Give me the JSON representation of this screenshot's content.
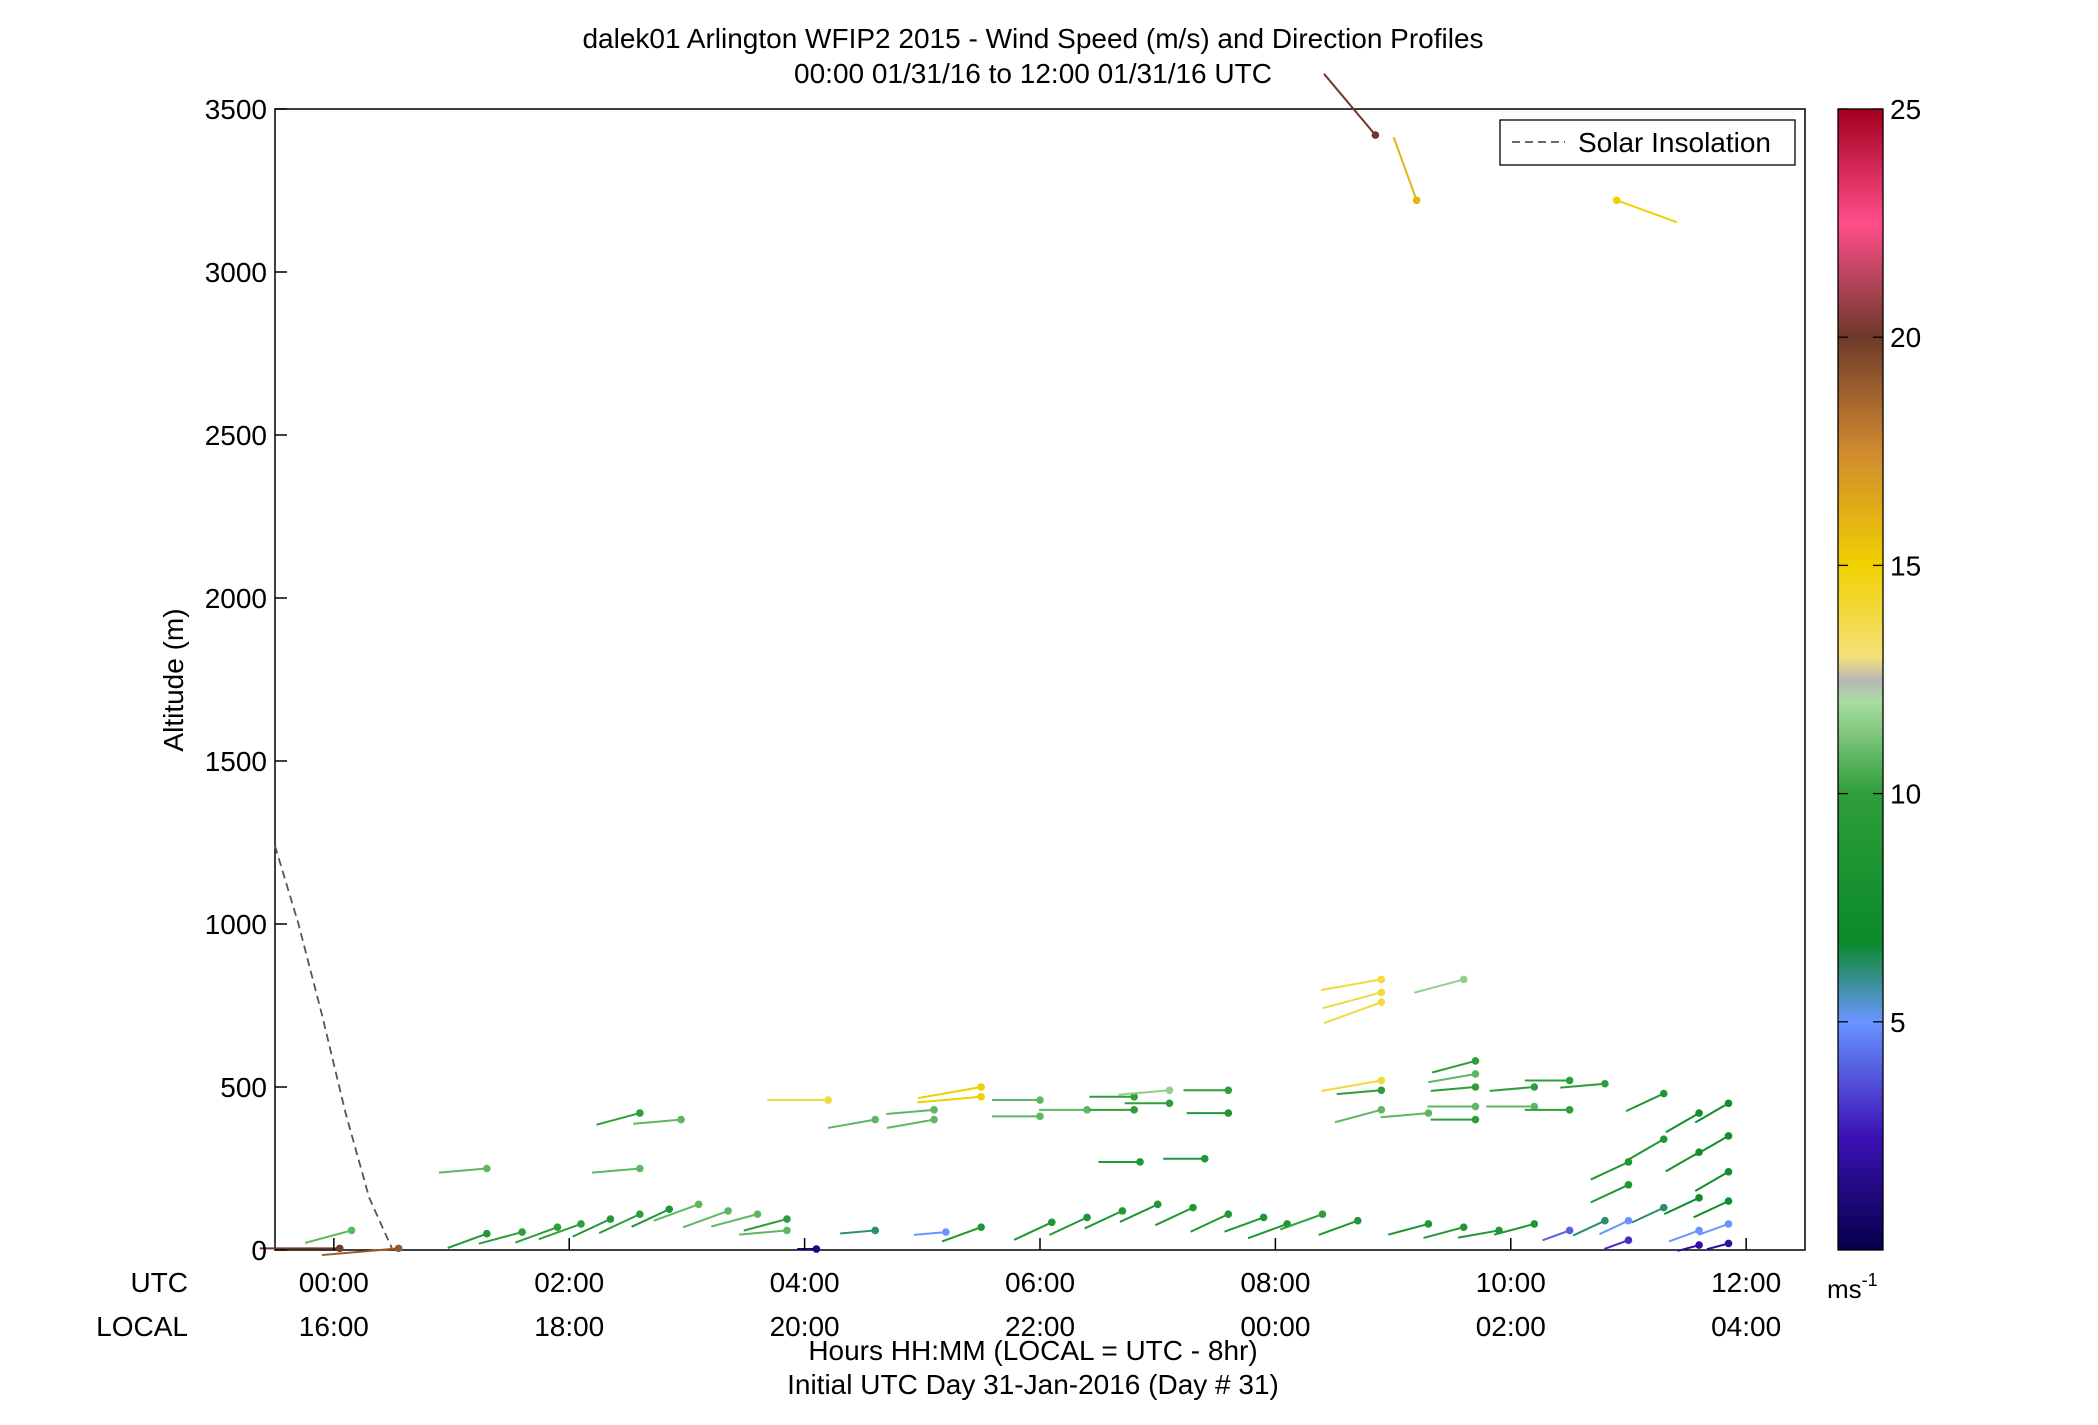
{
  "chart_data": {
    "type": "scatter",
    "title": "dalek01 Arlington WFIP2 2015 - Wind Speed (m/s) and Direction Profiles",
    "subtitle": "00:00 01/31/16 to 12:00 01/31/16  UTC",
    "ylabel": "Altitude (m)",
    "xlabel": "Hours HH:MM  (LOCAL = UTC - 8hr)",
    "xlabel2": "Initial UTC Day 31-Jan-2016 (Day # 31)",
    "xrow_labels": {
      "utc": "UTC",
      "local": "LOCAL"
    },
    "xlim_hours": [
      -0.5,
      12.5
    ],
    "ylim": [
      0,
      3500
    ],
    "y_ticks": [
      0,
      500,
      1000,
      1500,
      2000,
      2500,
      3000,
      3500
    ],
    "x_ticks_hours": [
      0,
      2,
      4,
      6,
      8,
      10,
      12
    ],
    "x_tick_labels_utc": [
      "00:00",
      "02:00",
      "04:00",
      "06:00",
      "08:00",
      "10:00",
      "12:00"
    ],
    "x_tick_labels_local": [
      "16:00",
      "18:00",
      "20:00",
      "22:00",
      "00:00",
      "02:00",
      "04:00"
    ],
    "legend": {
      "label": "Solar Insolation",
      "position": "top-right"
    },
    "colorbar": {
      "range": [
        0,
        25
      ],
      "ticks": [
        5,
        10,
        15,
        20,
        25
      ],
      "unit_label": "ms",
      "unit_exponent": "-1"
    },
    "solar_insolation": {
      "x": [
        -0.5,
        -0.3,
        -0.1,
        0.1,
        0.3,
        0.5
      ],
      "y": [
        1240,
        1000,
        720,
        420,
        160,
        0
      ]
    },
    "wind_barbs": [
      {
        "t": 0.05,
        "z": 5,
        "s": 20,
        "d": 270
      },
      {
        "t": 0.15,
        "z": 60,
        "s": 10,
        "d": 255
      },
      {
        "t": 0.55,
        "z": 5,
        "s": 19,
        "d": 265
      },
      {
        "t": 1.3,
        "z": 250,
        "s": 10,
        "d": 265
      },
      {
        "t": 1.3,
        "z": 50,
        "s": 8,
        "d": 250
      },
      {
        "t": 1.6,
        "z": 55,
        "s": 9,
        "d": 255
      },
      {
        "t": 1.9,
        "z": 70,
        "s": 9,
        "d": 250
      },
      {
        "t": 2.1,
        "z": 80,
        "s": 9,
        "d": 250
      },
      {
        "t": 2.35,
        "z": 95,
        "s": 8,
        "d": 245
      },
      {
        "t": 2.6,
        "z": 110,
        "s": 9,
        "d": 245
      },
      {
        "t": 2.85,
        "z": 125,
        "s": 8,
        "d": 245
      },
      {
        "t": 2.6,
        "z": 420,
        "s": 9,
        "d": 255
      },
      {
        "t": 2.95,
        "z": 400,
        "s": 10,
        "d": 265
      },
      {
        "t": 2.6,
        "z": 250,
        "s": 10,
        "d": 265
      },
      {
        "t": 3.1,
        "z": 140,
        "s": 10,
        "d": 250
      },
      {
        "t": 3.35,
        "z": 120,
        "s": 10,
        "d": 250
      },
      {
        "t": 3.6,
        "z": 110,
        "s": 10,
        "d": 255
      },
      {
        "t": 3.85,
        "z": 95,
        "s": 9,
        "d": 255
      },
      {
        "t": 3.85,
        "z": 60,
        "s": 10,
        "d": 265
      },
      {
        "t": 4.1,
        "z": 3,
        "s": 1,
        "d": 270
      },
      {
        "t": 4.2,
        "z": 460,
        "s": 14,
        "d": 270
      },
      {
        "t": 4.6,
        "z": 400,
        "s": 10,
        "d": 260
      },
      {
        "t": 4.6,
        "z": 60,
        "s": 6,
        "d": 265
      },
      {
        "t": 5.1,
        "z": 430,
        "s": 10,
        "d": 265
      },
      {
        "t": 5.1,
        "z": 400,
        "s": 10,
        "d": 260
      },
      {
        "t": 5.2,
        "z": 55,
        "s": 5,
        "d": 265
      },
      {
        "t": 5.5,
        "z": 70,
        "s": 8,
        "d": 250
      },
      {
        "t": 5.5,
        "z": 500,
        "s": 15,
        "d": 260
      },
      {
        "t": 5.5,
        "z": 470,
        "s": 15,
        "d": 265
      },
      {
        "t": 6.0,
        "z": 460,
        "s": 10,
        "d": 270
      },
      {
        "t": 6.0,
        "z": 410,
        "s": 10,
        "d": 270
      },
      {
        "t": 6.1,
        "z": 85,
        "s": 8,
        "d": 245
      },
      {
        "t": 6.4,
        "z": 100,
        "s": 8,
        "d": 245
      },
      {
        "t": 6.4,
        "z": 430,
        "s": 10,
        "d": 270
      },
      {
        "t": 6.7,
        "z": 120,
        "s": 8,
        "d": 245
      },
      {
        "t": 6.8,
        "z": 470,
        "s": 9,
        "d": 270
      },
      {
        "t": 6.8,
        "z": 430,
        "s": 9,
        "d": 270
      },
      {
        "t": 6.85,
        "z": 270,
        "s": 8,
        "d": 270
      },
      {
        "t": 7.0,
        "z": 140,
        "s": 8,
        "d": 245
      },
      {
        "t": 7.1,
        "z": 490,
        "s": 11,
        "d": 265
      },
      {
        "t": 7.1,
        "z": 450,
        "s": 9,
        "d": 270
      },
      {
        "t": 7.3,
        "z": 130,
        "s": 8,
        "d": 245
      },
      {
        "t": 7.4,
        "z": 280,
        "s": 8,
        "d": 270
      },
      {
        "t": 7.6,
        "z": 110,
        "s": 8,
        "d": 245
      },
      {
        "t": 7.6,
        "z": 490,
        "s": 9,
        "d": 270
      },
      {
        "t": 7.6,
        "z": 420,
        "s": 8,
        "d": 270
      },
      {
        "t": 7.9,
        "z": 100,
        "s": 8,
        "d": 250
      },
      {
        "t": 8.1,
        "z": 80,
        "s": 8,
        "d": 250
      },
      {
        "t": 8.4,
        "z": 110,
        "s": 9,
        "d": 250
      },
      {
        "t": 8.7,
        "z": 90,
        "s": 8,
        "d": 250
      },
      {
        "t": 8.9,
        "z": 830,
        "s": 14,
        "d": 260
      },
      {
        "t": 8.9,
        "z": 790,
        "s": 14,
        "d": 255
      },
      {
        "t": 8.9,
        "z": 760,
        "s": 14,
        "d": 250
      },
      {
        "t": 8.9,
        "z": 520,
        "s": 14,
        "d": 260
      },
      {
        "t": 8.9,
        "z": 490,
        "s": 9,
        "d": 265
      },
      {
        "t": 8.9,
        "z": 430,
        "s": 10,
        "d": 255
      },
      {
        "t": 8.85,
        "z": 3420,
        "s": 20,
        "d": 320
      },
      {
        "t": 9.2,
        "z": 3220,
        "s": 16,
        "d": 340
      },
      {
        "t": 9.3,
        "z": 420,
        "s": 10,
        "d": 265
      },
      {
        "t": 9.6,
        "z": 830,
        "s": 11,
        "d": 255
      },
      {
        "t": 9.7,
        "z": 580,
        "s": 9,
        "d": 255
      },
      {
        "t": 9.7,
        "z": 540,
        "s": 10,
        "d": 260
      },
      {
        "t": 9.7,
        "z": 500,
        "s": 9,
        "d": 265
      },
      {
        "t": 9.7,
        "z": 440,
        "s": 10,
        "d": 270
      },
      {
        "t": 9.7,
        "z": 400,
        "s": 9,
        "d": 270
      },
      {
        "t": 9.3,
        "z": 80,
        "s": 8,
        "d": 255
      },
      {
        "t": 9.6,
        "z": 70,
        "s": 8,
        "d": 255
      },
      {
        "t": 9.9,
        "z": 60,
        "s": 8,
        "d": 260
      },
      {
        "t": 10.2,
        "z": 500,
        "s": 9,
        "d": 265
      },
      {
        "t": 10.2,
        "z": 440,
        "s": 10,
        "d": 270
      },
      {
        "t": 10.2,
        "z": 80,
        "s": 8,
        "d": 255
      },
      {
        "t": 10.5,
        "z": 520,
        "s": 9,
        "d": 270
      },
      {
        "t": 10.5,
        "z": 430,
        "s": 9,
        "d": 270
      },
      {
        "t": 10.5,
        "z": 60,
        "s": 4,
        "d": 250
      },
      {
        "t": 10.8,
        "z": 510,
        "s": 9,
        "d": 265
      },
      {
        "t": 10.8,
        "z": 90,
        "s": 6,
        "d": 245
      },
      {
        "t": 10.9,
        "z": 3220,
        "s": 15,
        "d": 110
      },
      {
        "t": 11.0,
        "z": 270,
        "s": 8,
        "d": 245
      },
      {
        "t": 11.0,
        "z": 200,
        "s": 8,
        "d": 245
      },
      {
        "t": 11.0,
        "z": 90,
        "s": 5,
        "d": 245
      },
      {
        "t": 11.0,
        "z": 30,
        "s": 3,
        "d": 250
      },
      {
        "t": 11.3,
        "z": 480,
        "s": 8,
        "d": 245
      },
      {
        "t": 11.3,
        "z": 340,
        "s": 8,
        "d": 240
      },
      {
        "t": 11.3,
        "z": 130,
        "s": 6,
        "d": 245
      },
      {
        "t": 11.6,
        "z": 420,
        "s": 7,
        "d": 240
      },
      {
        "t": 11.6,
        "z": 300,
        "s": 7,
        "d": 240
      },
      {
        "t": 11.6,
        "z": 160,
        "s": 7,
        "d": 245
      },
      {
        "t": 11.6,
        "z": 60,
        "s": 5,
        "d": 250
      },
      {
        "t": 11.6,
        "z": 15,
        "s": 2,
        "d": 255
      },
      {
        "t": 11.85,
        "z": 450,
        "s": 7,
        "d": 240
      },
      {
        "t": 11.85,
        "z": 350,
        "s": 7,
        "d": 240
      },
      {
        "t": 11.85,
        "z": 240,
        "s": 7,
        "d": 240
      },
      {
        "t": 11.85,
        "z": 150,
        "s": 7,
        "d": 245
      },
      {
        "t": 11.85,
        "z": 80,
        "s": 5,
        "d": 250
      },
      {
        "t": 11.85,
        "z": 20,
        "s": 2,
        "d": 255
      }
    ]
  }
}
